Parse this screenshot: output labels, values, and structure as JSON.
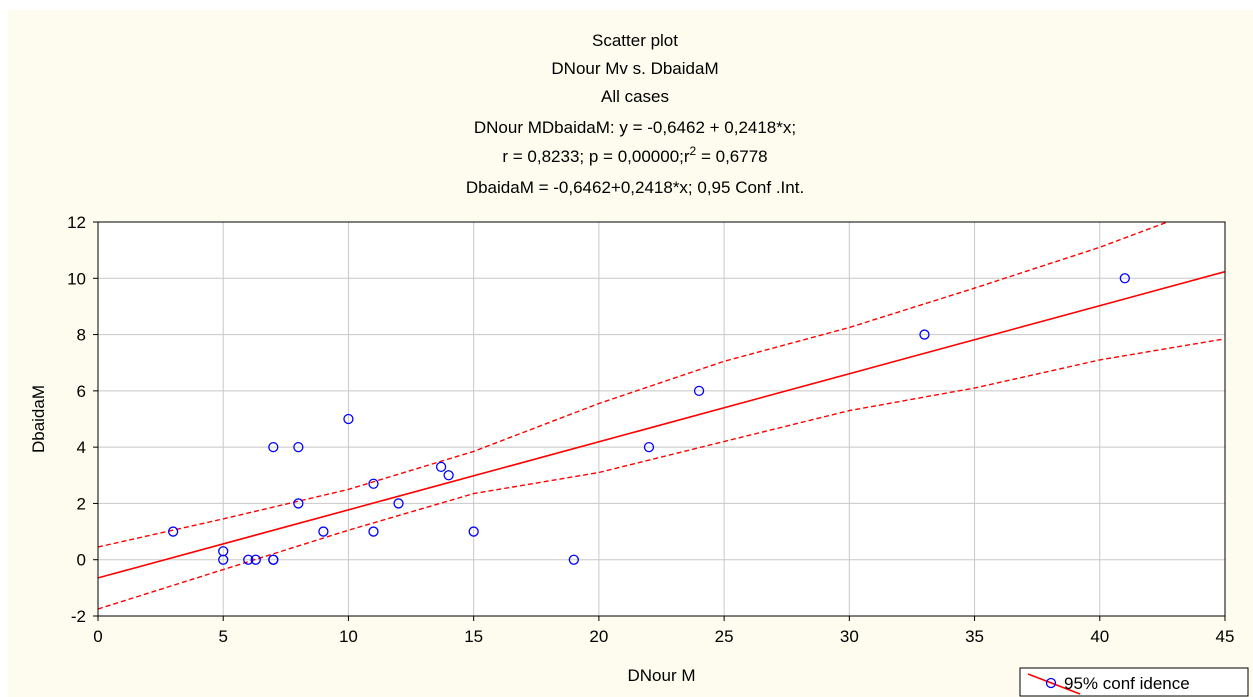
{
  "chart_data": {
    "type": "scatter",
    "title_lines": [
      "Scatter plot",
      "DNour Mv s. DbaidaM",
      "All cases",
      "DNour MDbaidaM:    y = -0,6462 + 0,2418*x;",
      "r = 0,8233; p = 0,00000;r² = 0,6778",
      "DbaidaM = -0,6462+0,2418*x; 0,95 Conf .Int."
    ],
    "xlabel": "DNour M",
    "ylabel": "DbaidaM",
    "xlim": [
      0,
      45
    ],
    "ylim": [
      -2,
      12
    ],
    "x_ticks": [
      0,
      5,
      10,
      15,
      20,
      25,
      30,
      35,
      40,
      45
    ],
    "y_ticks": [
      -2,
      0,
      2,
      4,
      6,
      8,
      10,
      12
    ],
    "grid": true,
    "legend_position": "bottom-right",
    "legend_label": "95% conf idence",
    "regression": {
      "intercept": -0.6462,
      "slope": 0.2418
    },
    "confidence_upper": [
      [
        0,
        0.45
      ],
      [
        5,
        1.45
      ],
      [
        10,
        2.5
      ],
      [
        15,
        3.85
      ],
      [
        20,
        5.55
      ],
      [
        25,
        7.05
      ],
      [
        30,
        8.25
      ],
      [
        35,
        9.65
      ],
      [
        40,
        11.1
      ],
      [
        42.7,
        12
      ]
    ],
    "confidence_lower": [
      [
        0,
        -1.75
      ],
      [
        5,
        -0.35
      ],
      [
        10,
        1.05
      ],
      [
        15,
        2.35
      ],
      [
        20,
        3.1
      ],
      [
        25,
        4.2
      ],
      [
        30,
        5.3
      ],
      [
        35,
        6.1
      ],
      [
        40,
        7.1
      ],
      [
        45,
        7.85
      ]
    ],
    "points": [
      [
        3,
        1.0
      ],
      [
        5,
        0.3
      ],
      [
        5,
        0.0
      ],
      [
        6,
        0.0
      ],
      [
        6.3,
        0.0
      ],
      [
        7,
        0.0
      ],
      [
        7,
        0.0
      ],
      [
        7,
        4.0
      ],
      [
        8,
        4.0
      ],
      [
        8,
        2.0
      ],
      [
        9,
        1.0
      ],
      [
        10,
        5.0
      ],
      [
        11,
        2.7
      ],
      [
        11,
        1.0
      ],
      [
        12,
        2.0
      ],
      [
        13.7,
        3.3
      ],
      [
        14,
        3.0
      ],
      [
        15,
        1.0
      ],
      [
        19,
        0.0
      ],
      [
        22,
        4.0
      ],
      [
        24,
        6.0
      ],
      [
        33,
        8.0
      ],
      [
        41,
        10.0
      ]
    ],
    "colors": {
      "plot_bg": "#ffffff",
      "outer_bg": "#fdfcee",
      "grid": "#c8c8c8",
      "points": "#0000ff",
      "fit_line": "#ff0000",
      "conf_band": "#ff0000"
    }
  }
}
